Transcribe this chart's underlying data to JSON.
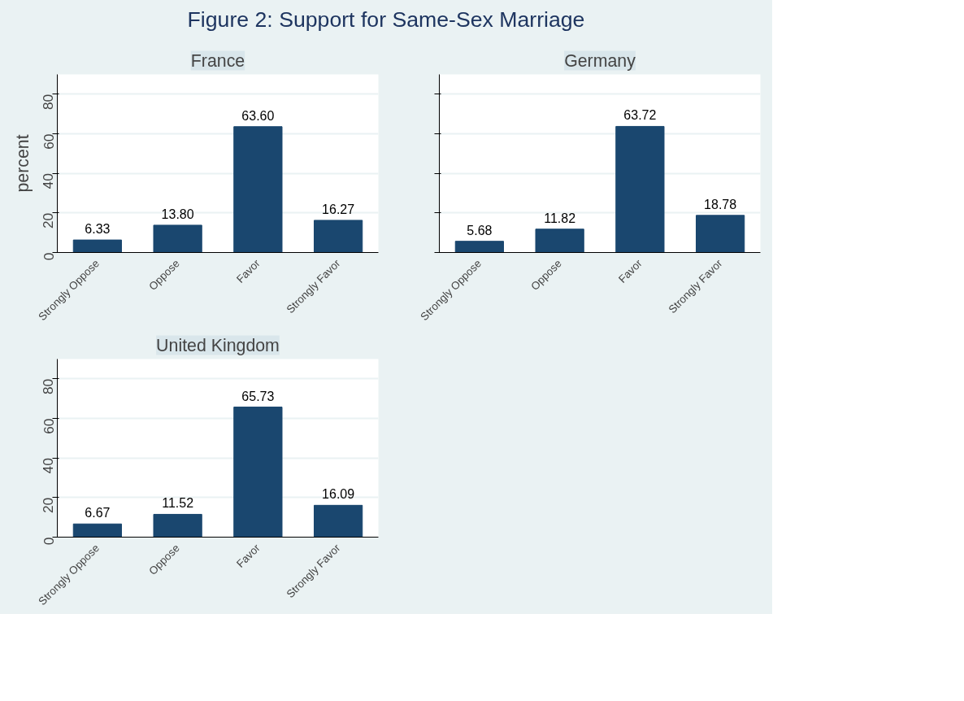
{
  "chart_data": [
    {
      "type": "bar",
      "title": "Figure 2:  Support for Same-Sex  Marriage",
      "subtitle": "France",
      "ylabel": "percent",
      "categories": [
        "Strongly Oppose",
        "Oppose",
        "Favor",
        "Strongly Favor"
      ],
      "values": [
        6.33,
        13.8,
        63.6,
        16.27
      ],
      "value_labels": [
        "6.33",
        "13.80",
        "63.60",
        "16.27"
      ],
      "color": "#1a476f",
      "ylim": [
        0,
        90
      ],
      "yticks": [
        0,
        20,
        40,
        60,
        80
      ],
      "grid": "y"
    },
    {
      "type": "bar",
      "subtitle": "Germany",
      "categories": [
        "Strongly Oppose",
        "Oppose",
        "Favor",
        "Strongly Favor"
      ],
      "values": [
        5.68,
        11.82,
        63.72,
        18.78
      ],
      "value_labels": [
        "5.68",
        "11.82",
        "63.72",
        "18.78"
      ],
      "color": "#1a476f",
      "ylim": [
        0,
        90
      ],
      "yticks": [
        0,
        20,
        40,
        60,
        80
      ],
      "grid": "y",
      "tick_labels": "x"
    },
    {
      "type": "bar",
      "subtitle": "United Kingdom",
      "categories": [
        "Strongly Oppose",
        "Oppose",
        "Favor",
        "Strongly Favor"
      ],
      "values": [
        6.67,
        11.52,
        65.73,
        16.09
      ],
      "value_labels": [
        "6.67",
        "11.52",
        "65.73",
        "16.09"
      ],
      "color": "#1a476f",
      "ylim": [
        0,
        90
      ],
      "yticks": [
        0,
        20,
        40,
        60,
        80
      ],
      "grid": "y"
    }
  ]
}
